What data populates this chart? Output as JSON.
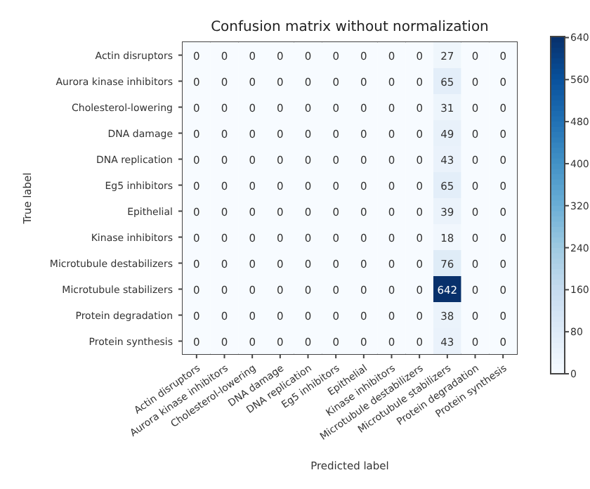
{
  "chart_data": {
    "type": "heatmap",
    "title": "Confusion matrix without normalization",
    "xlabel": "Predicted label",
    "ylabel": "True label",
    "categories": [
      "Actin disruptors",
      "Aurora kinase inhibitors",
      "Cholesterol-lowering",
      "DNA damage",
      "DNA replication",
      "Eg5 inhibitors",
      "Epithelial",
      "Kinase inhibitors",
      "Microtubule destabilizers",
      "Microtubule stabilizers",
      "Protein degradation",
      "Protein synthesis"
    ],
    "y_categories": [
      "Actin disruptors",
      "Aurora kinase inhibitors",
      "Cholesterol-lowering",
      "DNA damage",
      "DNA replication",
      "Eg5 inhibitors",
      "Epithelial",
      "Kinase inhibitors",
      "Microtubule destabilizers",
      "Microtubule stabilizers",
      "Protein degradation",
      "Protein synthesis"
    ],
    "cells": [
      [
        0,
        0,
        0,
        0,
        0,
        0,
        0,
        0,
        0,
        27,
        0,
        0
      ],
      [
        0,
        0,
        0,
        0,
        0,
        0,
        0,
        0,
        0,
        65,
        0,
        0
      ],
      [
        0,
        0,
        0,
        0,
        0,
        0,
        0,
        0,
        0,
        31,
        0,
        0
      ],
      [
        0,
        0,
        0,
        0,
        0,
        0,
        0,
        0,
        0,
        49,
        0,
        0
      ],
      [
        0,
        0,
        0,
        0,
        0,
        0,
        0,
        0,
        0,
        43,
        0,
        0
      ],
      [
        0,
        0,
        0,
        0,
        0,
        0,
        0,
        0,
        0,
        65,
        0,
        0
      ],
      [
        0,
        0,
        0,
        0,
        0,
        0,
        0,
        0,
        0,
        39,
        0,
        0
      ],
      [
        0,
        0,
        0,
        0,
        0,
        0,
        0,
        0,
        0,
        18,
        0,
        0
      ],
      [
        0,
        0,
        0,
        0,
        0,
        0,
        0,
        0,
        0,
        76,
        0,
        0
      ],
      [
        0,
        0,
        0,
        0,
        0,
        0,
        0,
        0,
        0,
        642,
        0,
        0
      ],
      [
        0,
        0,
        0,
        0,
        0,
        0,
        0,
        0,
        0,
        38,
        0,
        0
      ],
      [
        0,
        0,
        0,
        0,
        0,
        0,
        0,
        0,
        0,
        43,
        0,
        0
      ]
    ],
    "clim": [
      0,
      642
    ],
    "cticks": [
      0,
      80,
      160,
      240,
      320,
      400,
      480,
      560,
      640
    ],
    "data_labels": true
  }
}
